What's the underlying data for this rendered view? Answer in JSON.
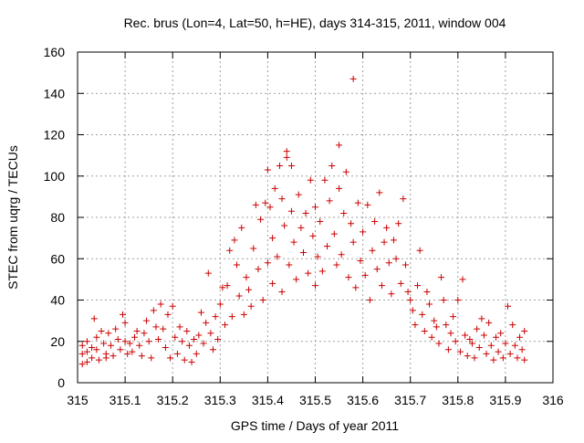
{
  "chart_data": {
    "type": "scatter",
    "title": "Rec. brus (Lon=4, Lat=50, h=HE), days 314-315, 2011, window 004",
    "xlabel": "GPS time / Days of year 2011",
    "ylabel": "STEC from uqrg / TECUs",
    "xlim": [
      315,
      316
    ],
    "ylim": [
      0,
      160
    ],
    "x_ticks": [
      "315",
      "315.1",
      "315.2",
      "315.3",
      "315.4",
      "315.5",
      "315.6",
      "315.7",
      "315.8",
      "315.9",
      "316"
    ],
    "y_ticks": [
      "0",
      "20",
      "40",
      "60",
      "80",
      "100",
      "120",
      "140",
      "160"
    ],
    "grid": true,
    "legend": "none",
    "marker": "plus",
    "color": "#cc0000",
    "points": [
      [
        315.01,
        18
      ],
      [
        315.01,
        14
      ],
      [
        315.01,
        9
      ],
      [
        315.02,
        20
      ],
      [
        315.02,
        15
      ],
      [
        315.02,
        10
      ],
      [
        315.03,
        17
      ],
      [
        315.03,
        12
      ],
      [
        315.035,
        31
      ],
      [
        315.04,
        22
      ],
      [
        315.04,
        16
      ],
      [
        315.045,
        11
      ],
      [
        315.05,
        25
      ],
      [
        315.055,
        19
      ],
      [
        315.06,
        14
      ],
      [
        315.06,
        12
      ],
      [
        315.065,
        24
      ],
      [
        315.07,
        18
      ],
      [
        315.075,
        13
      ],
      [
        315.08,
        26
      ],
      [
        315.085,
        21
      ],
      [
        315.09,
        16
      ],
      [
        315.095,
        33
      ],
      [
        315.1,
        29
      ],
      [
        315.1,
        20
      ],
      [
        315.105,
        14
      ],
      [
        315.11,
        19
      ],
      [
        315.115,
        15
      ],
      [
        315.12,
        22
      ],
      [
        315.125,
        25
      ],
      [
        315.13,
        18
      ],
      [
        315.135,
        13
      ],
      [
        315.14,
        24
      ],
      [
        315.145,
        30
      ],
      [
        315.15,
        20
      ],
      [
        315.155,
        12
      ],
      [
        315.16,
        35
      ],
      [
        315.165,
        27
      ],
      [
        315.17,
        21
      ],
      [
        315.175,
        38
      ],
      [
        315.18,
        26
      ],
      [
        315.185,
        17
      ],
      [
        315.19,
        33
      ],
      [
        315.195,
        12
      ],
      [
        315.2,
        37
      ],
      [
        315.205,
        22
      ],
      [
        315.21,
        14
      ],
      [
        315.215,
        27
      ],
      [
        315.22,
        20
      ],
      [
        315.225,
        11
      ],
      [
        315.23,
        25
      ],
      [
        315.235,
        18
      ],
      [
        315.24,
        10
      ],
      [
        315.245,
        21
      ],
      [
        315.25,
        14
      ],
      [
        315.255,
        23
      ],
      [
        315.26,
        34
      ],
      [
        315.265,
        19
      ],
      [
        315.27,
        29
      ],
      [
        315.275,
        53
      ],
      [
        315.28,
        24
      ],
      [
        315.285,
        16
      ],
      [
        315.29,
        32
      ],
      [
        315.295,
        21
      ],
      [
        315.3,
        38
      ],
      [
        315.305,
        46
      ],
      [
        315.31,
        28
      ],
      [
        315.315,
        47
      ],
      [
        315.32,
        64
      ],
      [
        315.325,
        32
      ],
      [
        315.33,
        69
      ],
      [
        315.335,
        57
      ],
      [
        315.34,
        42
      ],
      [
        315.345,
        75
      ],
      [
        315.35,
        33
      ],
      [
        315.355,
        51
      ],
      [
        315.36,
        45
      ],
      [
        315.365,
        37
      ],
      [
        315.37,
        65
      ],
      [
        315.375,
        86
      ],
      [
        315.38,
        55
      ],
      [
        315.385,
        79
      ],
      [
        315.39,
        40
      ],
      [
        315.395,
        87
      ],
      [
        315.4,
        58
      ],
      [
        315.4,
        103
      ],
      [
        315.405,
        85
      ],
      [
        315.41,
        70
      ],
      [
        315.41,
        48
      ],
      [
        315.415,
        94
      ],
      [
        315.42,
        61
      ],
      [
        315.425,
        105
      ],
      [
        315.43,
        89
      ],
      [
        315.43,
        44
      ],
      [
        315.435,
        76
      ],
      [
        315.44,
        112
      ],
      [
        315.44,
        109
      ],
      [
        315.445,
        57
      ],
      [
        315.45,
        105
      ],
      [
        315.45,
        83
      ],
      [
        315.455,
        68
      ],
      [
        315.46,
        50
      ],
      [
        315.465,
        91
      ],
      [
        315.47,
        75
      ],
      [
        315.475,
        63
      ],
      [
        315.48,
        82
      ],
      [
        315.485,
        53
      ],
      [
        315.49,
        98
      ],
      [
        315.495,
        71
      ],
      [
        315.5,
        47
      ],
      [
        315.5,
        85
      ],
      [
        315.505,
        61
      ],
      [
        315.51,
        78
      ],
      [
        315.515,
        54
      ],
      [
        315.52,
        98
      ],
      [
        315.525,
        66
      ],
      [
        315.53,
        88
      ],
      [
        315.535,
        105
      ],
      [
        315.54,
        72
      ],
      [
        315.545,
        57
      ],
      [
        315.55,
        115
      ],
      [
        315.55,
        94
      ],
      [
        315.555,
        62
      ],
      [
        315.56,
        82
      ],
      [
        315.565,
        102
      ],
      [
        315.57,
        51
      ],
      [
        315.575,
        77
      ],
      [
        315.58,
        147
      ],
      [
        315.58,
        68
      ],
      [
        315.585,
        46
      ],
      [
        315.59,
        87
      ],
      [
        315.595,
        59
      ],
      [
        315.6,
        73
      ],
      [
        315.605,
        52
      ],
      [
        315.61,
        86
      ],
      [
        315.615,
        40
      ],
      [
        315.62,
        64
      ],
      [
        315.625,
        78
      ],
      [
        315.63,
        55
      ],
      [
        315.635,
        92
      ],
      [
        315.64,
        47
      ],
      [
        315.645,
        68
      ],
      [
        315.65,
        75
      ],
      [
        315.655,
        58
      ],
      [
        315.66,
        43
      ],
      [
        315.665,
        69
      ],
      [
        315.67,
        60
      ],
      [
        315.675,
        77
      ],
      [
        315.68,
        48
      ],
      [
        315.685,
        89
      ],
      [
        315.69,
        57
      ],
      [
        315.695,
        44
      ],
      [
        315.7,
        40
      ],
      [
        315.705,
        35
      ],
      [
        315.71,
        28
      ],
      [
        315.715,
        47
      ],
      [
        315.72,
        64
      ],
      [
        315.725,
        33
      ],
      [
        315.73,
        25
      ],
      [
        315.735,
        44
      ],
      [
        315.74,
        38
      ],
      [
        315.745,
        22
      ],
      [
        315.75,
        30
      ],
      [
        315.755,
        27
      ],
      [
        315.76,
        19
      ],
      [
        315.765,
        51
      ],
      [
        315.77,
        40
      ],
      [
        315.775,
        28
      ],
      [
        315.78,
        16
      ],
      [
        315.785,
        24
      ],
      [
        315.79,
        32
      ],
      [
        315.795,
        20
      ],
      [
        315.8,
        40
      ],
      [
        315.805,
        15
      ],
      [
        315.81,
        50
      ],
      [
        315.815,
        23
      ],
      [
        315.82,
        13
      ],
      [
        315.825,
        21
      ],
      [
        315.83,
        19
      ],
      [
        315.835,
        12
      ],
      [
        315.84,
        26
      ],
      [
        315.845,
        17
      ],
      [
        315.85,
        31
      ],
      [
        315.855,
        23
      ],
      [
        315.86,
        14
      ],
      [
        315.865,
        29
      ],
      [
        315.87,
        18
      ],
      [
        315.875,
        11
      ],
      [
        315.88,
        22
      ],
      [
        315.885,
        15
      ],
      [
        315.89,
        24
      ],
      [
        315.895,
        12
      ],
      [
        315.9,
        19
      ],
      [
        315.905,
        37
      ],
      [
        315.91,
        14
      ],
      [
        315.915,
        28
      ],
      [
        315.92,
        18
      ],
      [
        315.925,
        12
      ],
      [
        315.93,
        22
      ],
      [
        315.935,
        16
      ],
      [
        315.94,
        25
      ],
      [
        315.94,
        11
      ]
    ]
  }
}
